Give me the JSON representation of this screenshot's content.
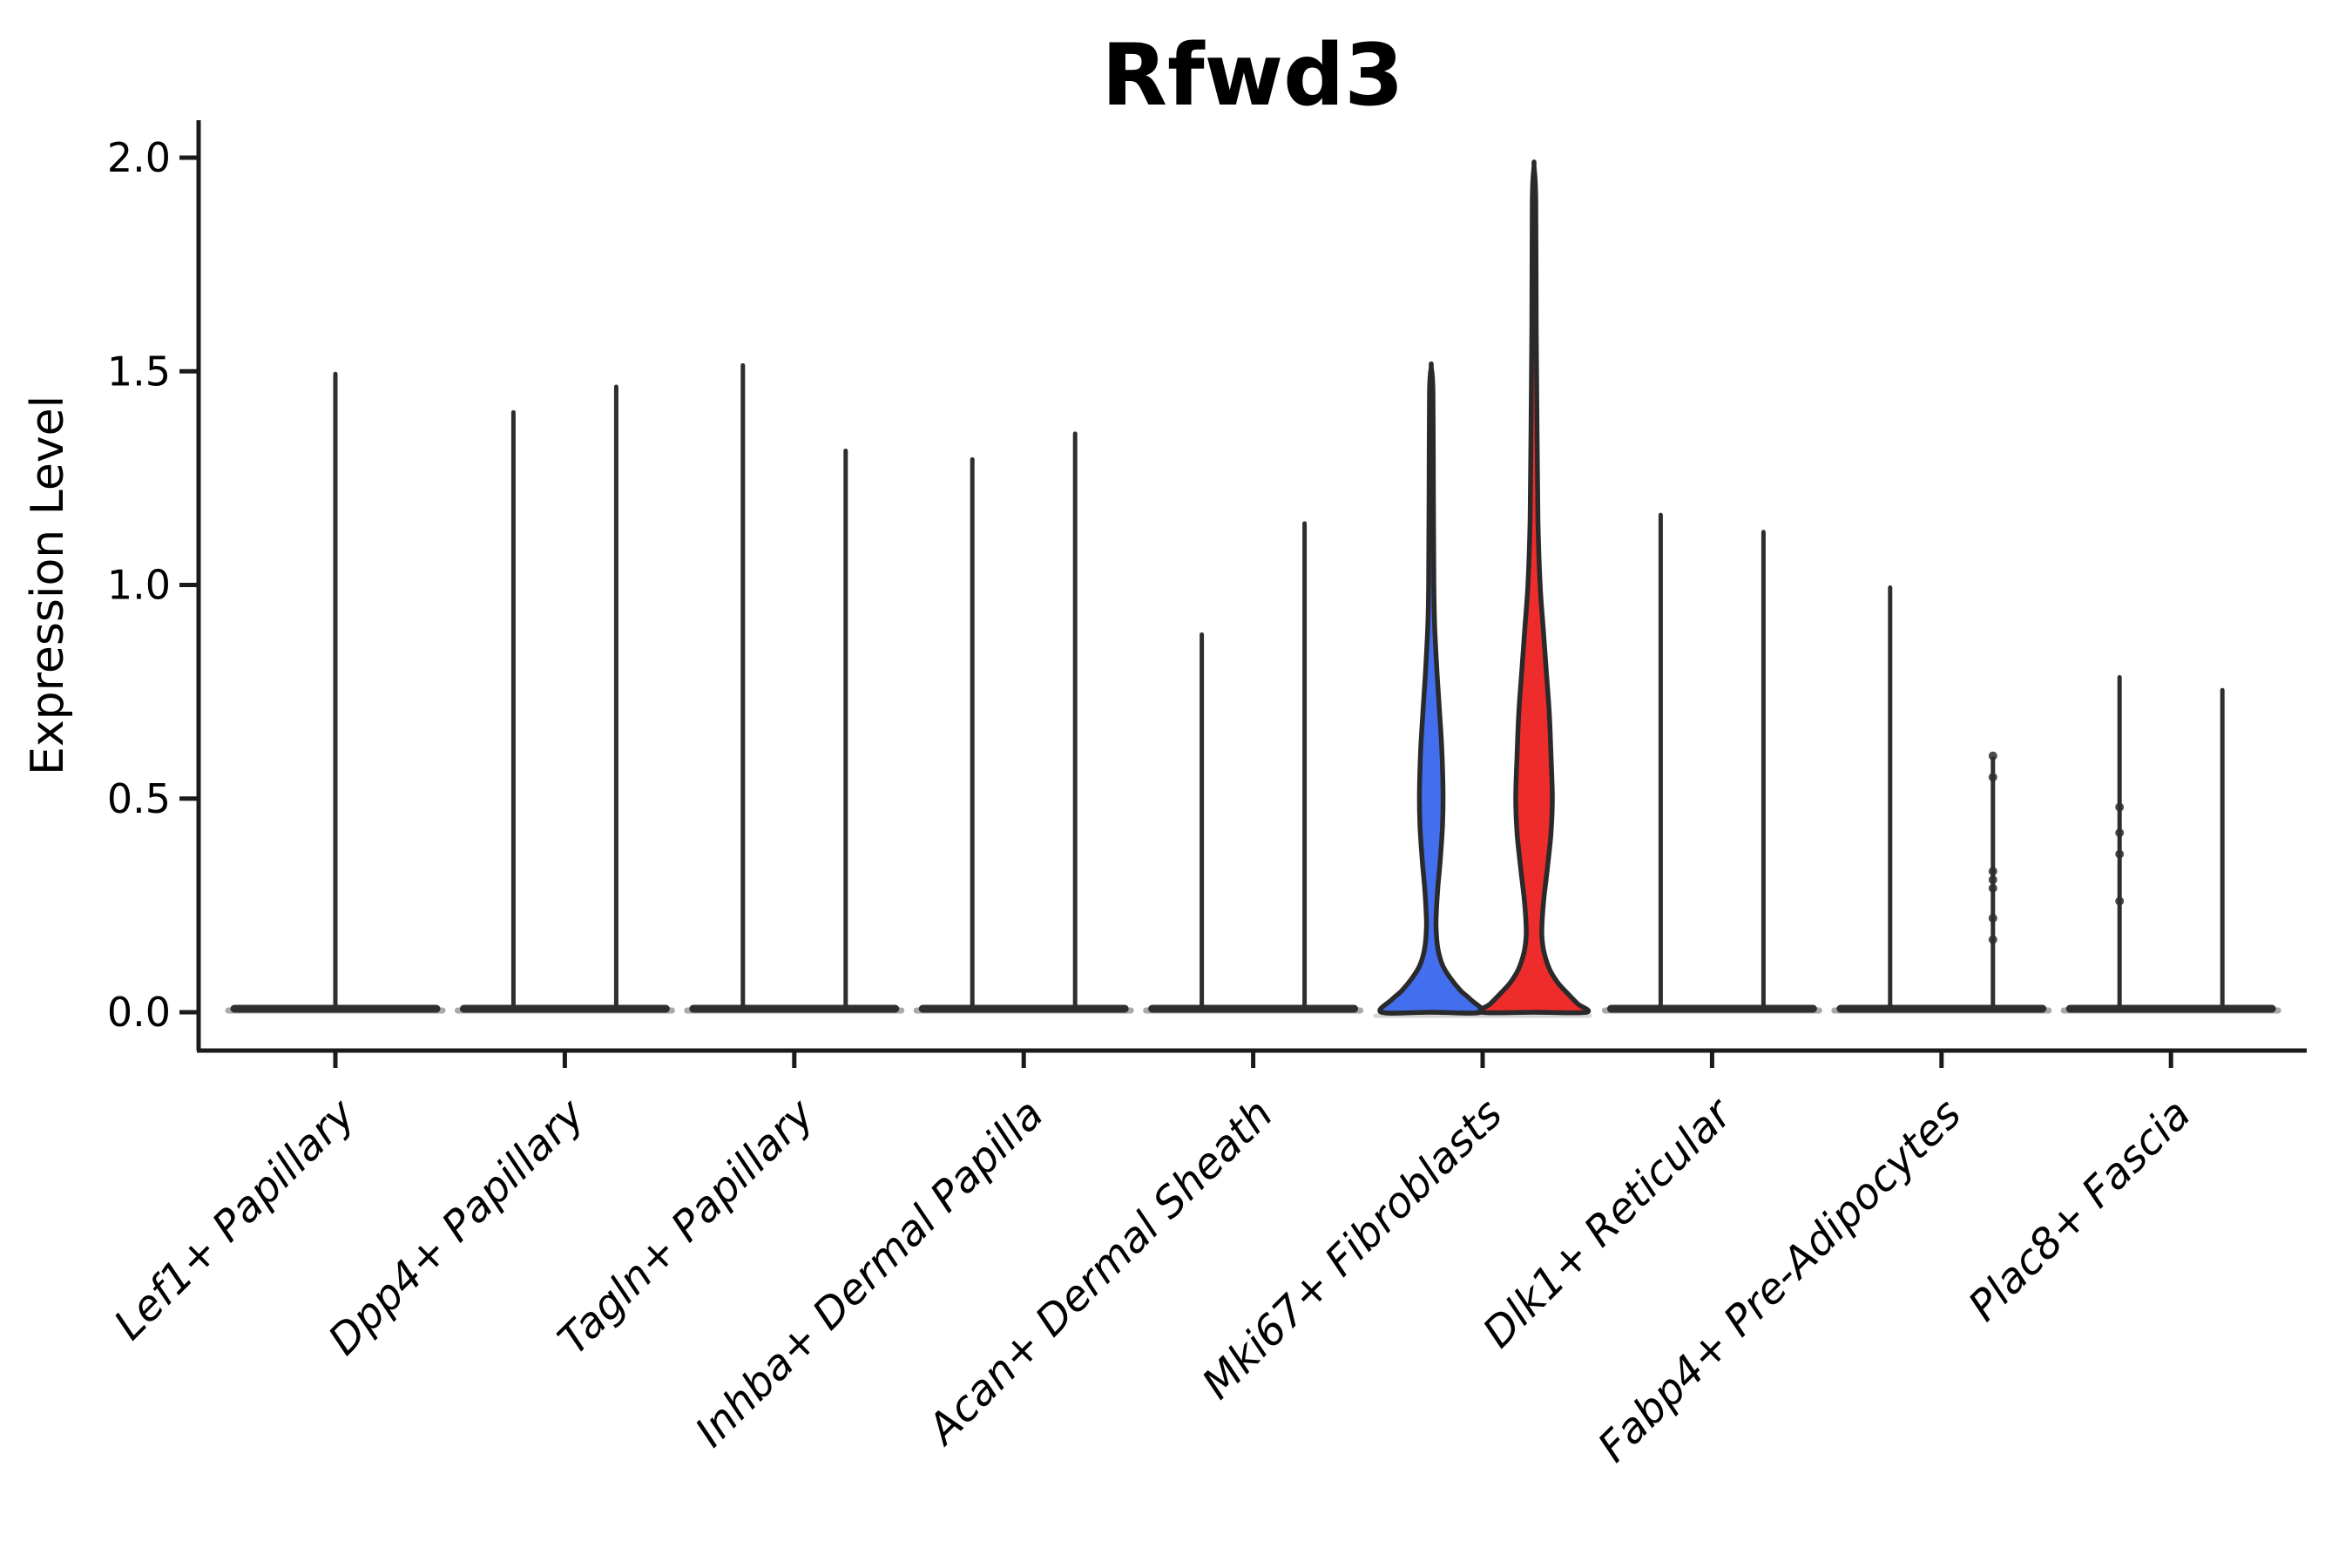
{
  "chart_data": {
    "type": "violin",
    "title": "Rfwd3",
    "ylabel": "Expression Level",
    "xlabel": "",
    "ylim": [
      0.0,
      2.0
    ],
    "grid": false,
    "legend_position": "none",
    "yticks": [
      {
        "label": "2.0",
        "value": 2.0
      },
      {
        "label": "1.5",
        "value": 1.5
      },
      {
        "label": "1.0",
        "value": 1.0
      },
      {
        "label": "0.5",
        "value": 0.5
      },
      {
        "label": "0.0",
        "value": 0.0
      }
    ],
    "categories": [
      {
        "label": "Lef1+ Papillary",
        "violins": [
          {
            "pos": "center",
            "style": "spike",
            "top": 1.5
          }
        ]
      },
      {
        "label": "Dpp4+ Papillary",
        "violins": [
          {
            "pos": "left",
            "style": "spike",
            "top": 1.41
          },
          {
            "pos": "right",
            "style": "spike",
            "top": 1.47
          }
        ]
      },
      {
        "label": "Tagln+ Papillary",
        "violins": [
          {
            "pos": "left",
            "style": "spike",
            "top": 1.52
          },
          {
            "pos": "right",
            "style": "spike",
            "top": 1.32
          }
        ]
      },
      {
        "label": "Inhba+ Dermal Papilla",
        "violins": [
          {
            "pos": "left",
            "style": "spike",
            "top": 1.3
          },
          {
            "pos": "right",
            "style": "spike",
            "top": 1.36
          }
        ]
      },
      {
        "label": "Acan+ Dermal Sheath",
        "violins": [
          {
            "pos": "left",
            "style": "spike",
            "top": 0.89
          },
          {
            "pos": "right",
            "style": "spike",
            "top": 1.15
          }
        ]
      },
      {
        "label": "Mki67+ Fibroblasts",
        "violins": [
          {
            "pos": "left",
            "style": "violin",
            "top": 1.51,
            "fill": "#436EEE",
            "profile": [
              [
                1.51,
                0
              ],
              [
                1.45,
                2
              ],
              [
                1.2,
                2.5
              ],
              [
                1.0,
                3
              ],
              [
                0.9,
                4
              ],
              [
                0.8,
                6.5
              ],
              [
                0.72,
                9
              ],
              [
                0.62,
                12
              ],
              [
                0.52,
                13.5
              ],
              [
                0.44,
                13
              ],
              [
                0.36,
                10.5
              ],
              [
                0.29,
                7.5
              ],
              [
                0.24,
                6
              ],
              [
                0.2,
                5.5
              ],
              [
                0.15,
                7.5
              ],
              [
                0.11,
                13
              ],
              [
                0.08,
                22
              ],
              [
                0.05,
                34
              ],
              [
                0.03,
                45
              ],
              [
                0.0,
                57
              ]
            ]
          },
          {
            "pos": "right",
            "style": "violin",
            "top": 1.98,
            "fill": "#EE2C2C",
            "profile": [
              [
                1.98,
                0
              ],
              [
                1.9,
                2
              ],
              [
                1.6,
                2.5
              ],
              [
                1.35,
                3.5
              ],
              [
                1.15,
                4.5
              ],
              [
                1.0,
                7
              ],
              [
                0.9,
                10.5
              ],
              [
                0.8,
                14
              ],
              [
                0.7,
                17.5
              ],
              [
                0.6,
                19.5
              ],
              [
                0.5,
                21
              ],
              [
                0.42,
                19.5
              ],
              [
                0.34,
                15.5
              ],
              [
                0.27,
                11.5
              ],
              [
                0.22,
                9.5
              ],
              [
                0.18,
                9
              ],
              [
                0.14,
                11.5
              ],
              [
                0.1,
                18
              ],
              [
                0.07,
                27
              ],
              [
                0.045,
                38
              ],
              [
                0.02,
                50
              ],
              [
                0.0,
                60
              ]
            ]
          }
        ]
      },
      {
        "label": "Dlk1+ Reticular",
        "violins": [
          {
            "pos": "left",
            "style": "spike",
            "top": 1.17
          },
          {
            "pos": "right",
            "style": "spike",
            "top": 1.13
          }
        ]
      },
      {
        "label": "Fabp4+ Pre-Adipocytes",
        "violins": [
          {
            "pos": "left",
            "style": "spike",
            "top": 1.0
          },
          {
            "pos": "right",
            "style": "spike",
            "top": 0.6,
            "points": [
              0.6,
              0.55,
              0.33,
              0.31,
              0.29,
              0.22,
              0.17
            ]
          }
        ]
      },
      {
        "label": "Plac8+ Fascia",
        "violins": [
          {
            "pos": "left",
            "style": "spike",
            "top": 0.79,
            "points": [
              0.48,
              0.42,
              0.37,
              0.26
            ]
          },
          {
            "pos": "right",
            "style": "spike",
            "top": 0.76
          }
        ]
      }
    ],
    "colors": {
      "spike": "#2E2E2E",
      "violin_outline": "#2A2A2A",
      "blue_fill": "#436EEE",
      "red_fill": "#EE2C2C",
      "axis": "#1A1A1A",
      "base_bar": "#2F2F2F",
      "base_fade": "#A9A9A9",
      "jitter_band": "#D6D6D6",
      "background": "#FFFFFF"
    }
  }
}
